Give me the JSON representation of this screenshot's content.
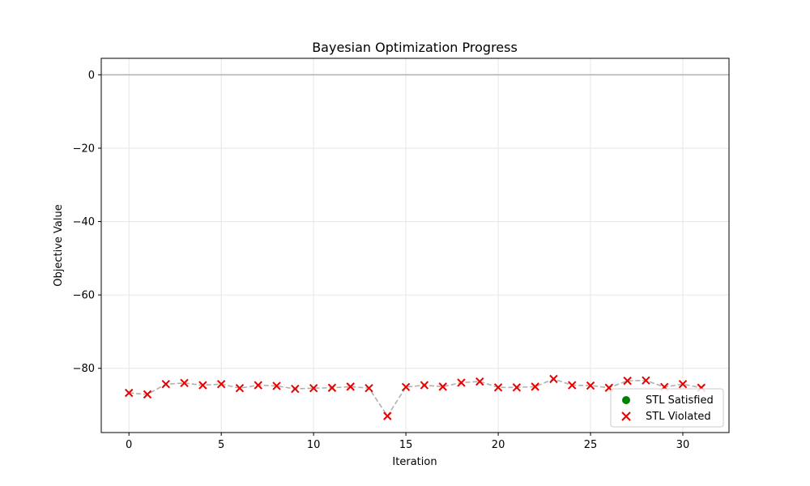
{
  "chart_data": {
    "type": "line",
    "title": "Bayesian Optimization Progress",
    "xlabel": "Iteration",
    "ylabel": "Objective Value",
    "xlim": [
      -1.5,
      32.5
    ],
    "ylim": [
      -97.5,
      4.5
    ],
    "xticks": [
      0,
      5,
      10,
      15,
      20,
      25,
      30
    ],
    "yticks": [
      0,
      -20,
      -40,
      -60,
      -80
    ],
    "ytick_labels": [
      "0",
      "−20",
      "−40",
      "−60",
      "−80"
    ],
    "grid": true,
    "reference_line": {
      "y": 0,
      "color": "#b0b0b0"
    },
    "legend_placement": "lower-right",
    "series": [
      {
        "name": "STL Satisfied",
        "marker": "circle",
        "color": "#008000",
        "x": [],
        "y": []
      },
      {
        "name": "STL Violated",
        "marker": "x",
        "color": "#e60000",
        "x": [
          0,
          1,
          2,
          3,
          4,
          5,
          6,
          7,
          8,
          9,
          10,
          11,
          12,
          13,
          14,
          15,
          16,
          17,
          18,
          19,
          20,
          21,
          22,
          23,
          24,
          25,
          26,
          27,
          28,
          29,
          30,
          31
        ],
        "y": [
          -86.7,
          -87.1,
          -84.3,
          -84.0,
          -84.6,
          -84.3,
          -85.4,
          -84.6,
          -84.8,
          -85.6,
          -85.4,
          -85.3,
          -85.0,
          -85.4,
          -93.0,
          -85.1,
          -84.6,
          -85.0,
          -83.9,
          -83.6,
          -85.2,
          -85.2,
          -85.0,
          -82.9,
          -84.6,
          -84.7,
          -85.3,
          -83.4,
          -83.3,
          -85.1,
          -84.3,
          -85.3
        ]
      }
    ],
    "connector_line": {
      "style": "dashed",
      "color": "#b0b0b0"
    }
  }
}
